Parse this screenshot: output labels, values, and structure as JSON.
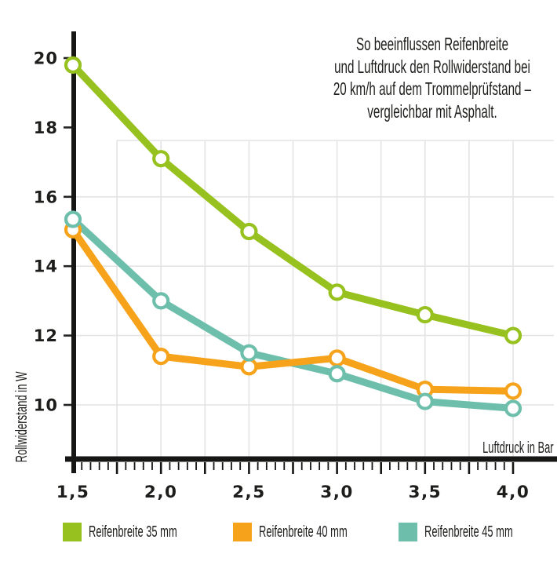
{
  "title": {
    "lines": [
      "So beeinflussen Reifenbreite",
      "und Luftdruck den Rollwiderstand bei",
      "20 km/h auf dem Trommelprüfstand –",
      "vergleichbar mit Asphalt."
    ]
  },
  "chart_data": {
    "type": "line",
    "title": "So beeinflussen Reifenbreite und Luftdruck den Rollwiderstand bei 20 km/h auf dem Trommelprüfstand – vergleichbar mit Asphalt.",
    "xlabel": "Luftdruck in Bar",
    "ylabel": "Rollwiderstand in W",
    "x": [
      1.5,
      2.0,
      2.5,
      3.0,
      3.5,
      4.0
    ],
    "x_tick_labels": [
      "1,5",
      "2,0",
      "2,5",
      "3,0",
      "3,5",
      "4,0"
    ],
    "x_minor_tick_step": 0.05,
    "x_medium_tick_step": 0.25,
    "y_ticks": [
      10,
      12,
      14,
      16,
      18,
      20
    ],
    "y_gridline_values": [
      16,
      14,
      12,
      10
    ],
    "xlim": [
      1.5,
      4.13
    ],
    "ylim": [
      8.4,
      20.8
    ],
    "grid": {
      "on": true,
      "vertical_step_bar": 0.25,
      "vertical_from": 1.75,
      "vertical_to": 4.0,
      "color": "#e4e4e4"
    },
    "legend_position": "bottom",
    "marker": {
      "shape": "open-circle",
      "fill": "#ffffff"
    },
    "series": [
      {
        "name": "Reifenbreite 35 mm",
        "color": "#97c11e",
        "values": [
          19.8,
          17.1,
          15.0,
          13.25,
          12.6,
          12.0
        ]
      },
      {
        "name": "Reifenbreite 40 mm",
        "color": "#f6a31b",
        "values": [
          15.05,
          11.4,
          11.1,
          11.35,
          10.45,
          10.4
        ]
      },
      {
        "name": "Reifenbreite 45 mm",
        "color": "#6dbfac",
        "values": [
          15.35,
          13.0,
          11.5,
          10.9,
          10.1,
          9.9
        ]
      }
    ]
  },
  "colors": {
    "axis": "#161615",
    "text": "#1d1d1b",
    "y_tick_mark": "#232323",
    "grid": "#e4e4e4",
    "background": "#ffffff"
  }
}
